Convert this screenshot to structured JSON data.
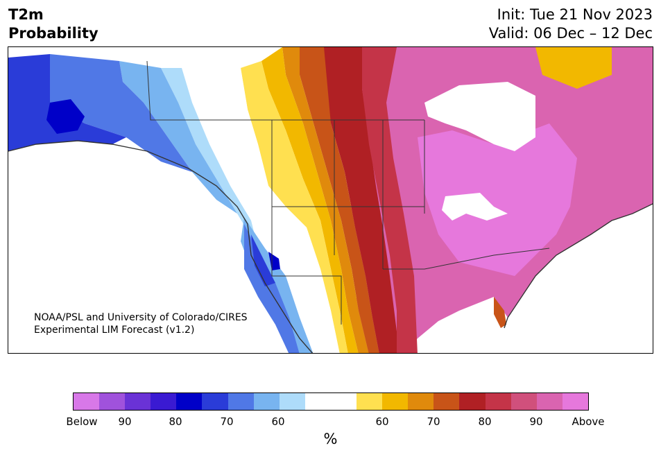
{
  "title": {
    "left_line1": "T2m",
    "left_line2": "Probability",
    "right_line1": "Init: Tue 21 Nov 2023",
    "right_line2": "Valid: 06 Dec – 12 Dec"
  },
  "credit": {
    "line1": "NOAA/PSL and University of Colorado/CIRES",
    "line2": "Experimental LIM Forecast (v1.2)"
  },
  "colorbar": {
    "colors": [
      "#d878e8",
      "#a052dc",
      "#6a32d6",
      "#3a1ad2",
      "#0000c8",
      "#2a3cd8",
      "#5078e6",
      "#78b4f0",
      "#aedcfa",
      "#ffffff",
      "#ffffff",
      "#ffe050",
      "#f2b800",
      "#e08a0c",
      "#c85418",
      "#b02024",
      "#c43448",
      "#d0507c",
      "#da64b0",
      "#e678dc"
    ],
    "tick_labels": [
      "Below",
      "90",
      "80",
      "70",
      "60",
      "60",
      "70",
      "80",
      "90",
      "Above"
    ],
    "unit": "%"
  },
  "map": {
    "category_colors": {
      "below_90": "#0000c8",
      "below_80": "#2a3cd8",
      "below_70": "#5078e6",
      "below_60": "#78b4f0",
      "below_50": "#aedcfa",
      "near_normal": "#ffffff",
      "above_50": "#ffe050",
      "above_60": "#f2b800",
      "above_70": "#e08a0c",
      "above_75": "#c85418",
      "above_80": "#b02024",
      "above_85": "#c43448",
      "above_88": "#d0507c",
      "above_90": "#da64b0",
      "above_95": "#e678dc"
    }
  }
}
